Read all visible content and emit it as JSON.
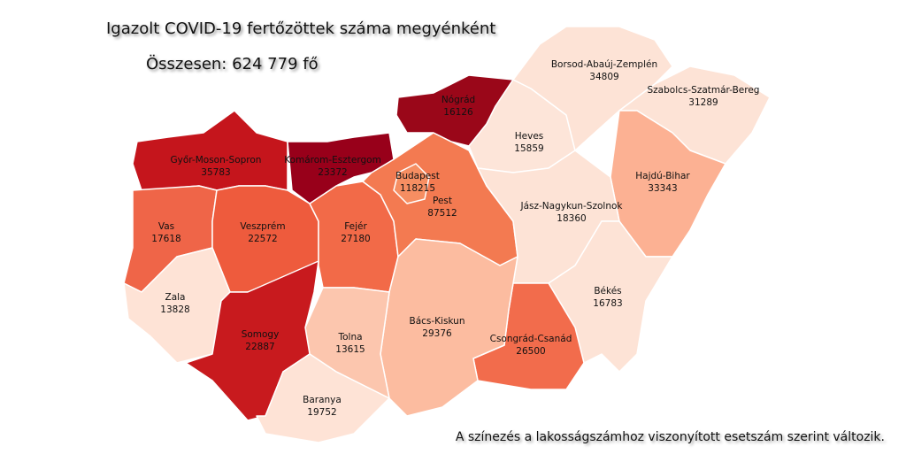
{
  "title": "Igazolt COVID-19 fertőzöttek száma megyénként",
  "total": "Összesen: 624 779 fő",
  "note": "A színezés a lakosságszámhoz viszonyított esetszám szerint változik.",
  "counties": [
    {
      "name": "Győr-Moson-Sopron",
      "cases": 35783,
      "color": "#c5151c"
    },
    {
      "name": "Komárom-Esztergom",
      "cases": 23372,
      "color": "#98001a"
    },
    {
      "name": "Nógrád",
      "cases": 16126,
      "color": "#9a0719"
    },
    {
      "name": "Vas",
      "cases": 17618,
      "color": "#ef6548"
    },
    {
      "name": "Veszprém",
      "cases": 22572,
      "color": "#ee5b3d"
    },
    {
      "name": "Fejér",
      "cases": 27180,
      "color": "#f26a48"
    },
    {
      "name": "Pest",
      "cases": 87512,
      "color": "#f37a51"
    },
    {
      "name": "Budapest",
      "cases": 118215,
      "color": "#f68e62"
    },
    {
      "name": "Heves",
      "cases": 15859,
      "color": "#fde5d9"
    },
    {
      "name": "Borsod-Abaúj-Zemplén",
      "cases": 34809,
      "color": "#fde3d6"
    },
    {
      "name": "Szabolcs-Szatmár-Bereg",
      "cases": 31289,
      "color": "#fde3d6"
    },
    {
      "name": "Hajdú-Bihar",
      "cases": 33343,
      "color": "#fcb193"
    },
    {
      "name": "Jász-Nagykun-Szolnok",
      "cases": 18360,
      "color": "#fde3d6"
    },
    {
      "name": "Békés",
      "cases": 16783,
      "color": "#fde3d6"
    },
    {
      "name": "Csongrád-Csanád",
      "cases": 26500,
      "color": "#f26c4c"
    },
    {
      "name": "Bács-Kiskun",
      "cases": 29376,
      "color": "#fcbca0"
    },
    {
      "name": "Tolna",
      "cases": 13615,
      "color": "#fcc6ae"
    },
    {
      "name": "Zala",
      "cases": 13828,
      "color": "#fee3d6"
    },
    {
      "name": "Somogy",
      "cases": 22887,
      "color": "#c81a1e"
    },
    {
      "name": "Baranya",
      "cases": 19752,
      "color": "#fee3d6"
    }
  ]
}
